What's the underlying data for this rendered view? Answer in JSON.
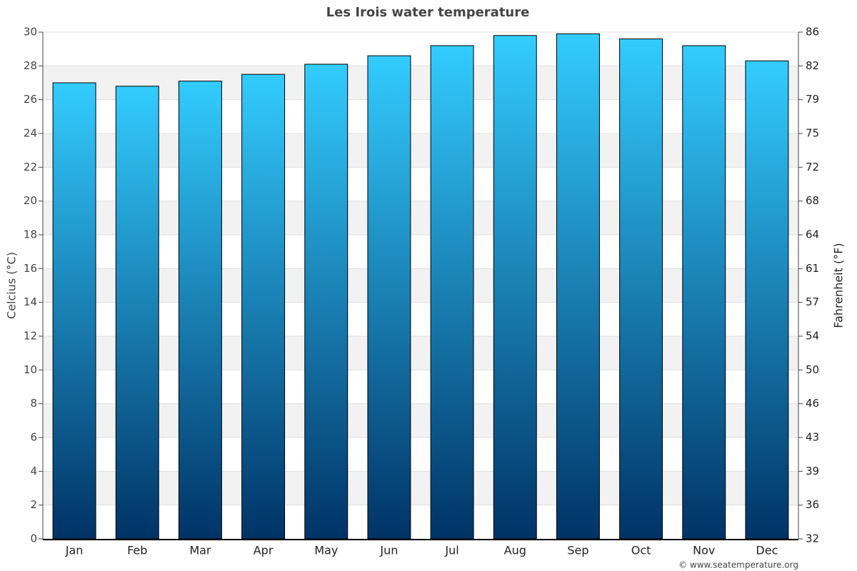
{
  "chart_data": {
    "type": "bar",
    "title": "Les Irois water temperature",
    "y_label": "Celcius (°C)",
    "y2_label": "Fahrenheit (°F)",
    "source": "© www.seatemperature.org",
    "categories": [
      "Jan",
      "Feb",
      "Mar",
      "Apr",
      "May",
      "Jun",
      "Jul",
      "Aug",
      "Sep",
      "Oct",
      "Nov",
      "Dec"
    ],
    "values": [
      27.0,
      26.8,
      27.1,
      27.5,
      28.1,
      28.6,
      29.2,
      29.8,
      29.9,
      29.6,
      29.2,
      28.3
    ],
    "color": "#33ccff",
    "ylim": [
      0,
      30
    ],
    "yticks": [
      0,
      2,
      4,
      6,
      8,
      10,
      12,
      14,
      16,
      18,
      20,
      22,
      24,
      26,
      28,
      30
    ],
    "y2lim": [
      32,
      86
    ],
    "y2ticks": [
      32,
      {
        "value": 35.6,
        "label": "36"
      },
      {
        "value": 39.2,
        "label": "39"
      },
      {
        "value": 42.8,
        "label": "43"
      },
      {
        "value": 46.4,
        "label": "46"
      },
      50,
      {
        "value": 53.6,
        "label": "54"
      },
      {
        "value": 57.2,
        "label": "57"
      },
      {
        "value": 60.8,
        "label": "61"
      },
      {
        "value": 64.4,
        "label": "64"
      },
      68,
      {
        "value": 71.6,
        "label": "72"
      },
      {
        "value": 75.2,
        "label": "75"
      },
      {
        "value": 78.8,
        "label": "79"
      },
      {
        "value": 82.4,
        "label": "82"
      },
      86
    ],
    "grid": true
  }
}
